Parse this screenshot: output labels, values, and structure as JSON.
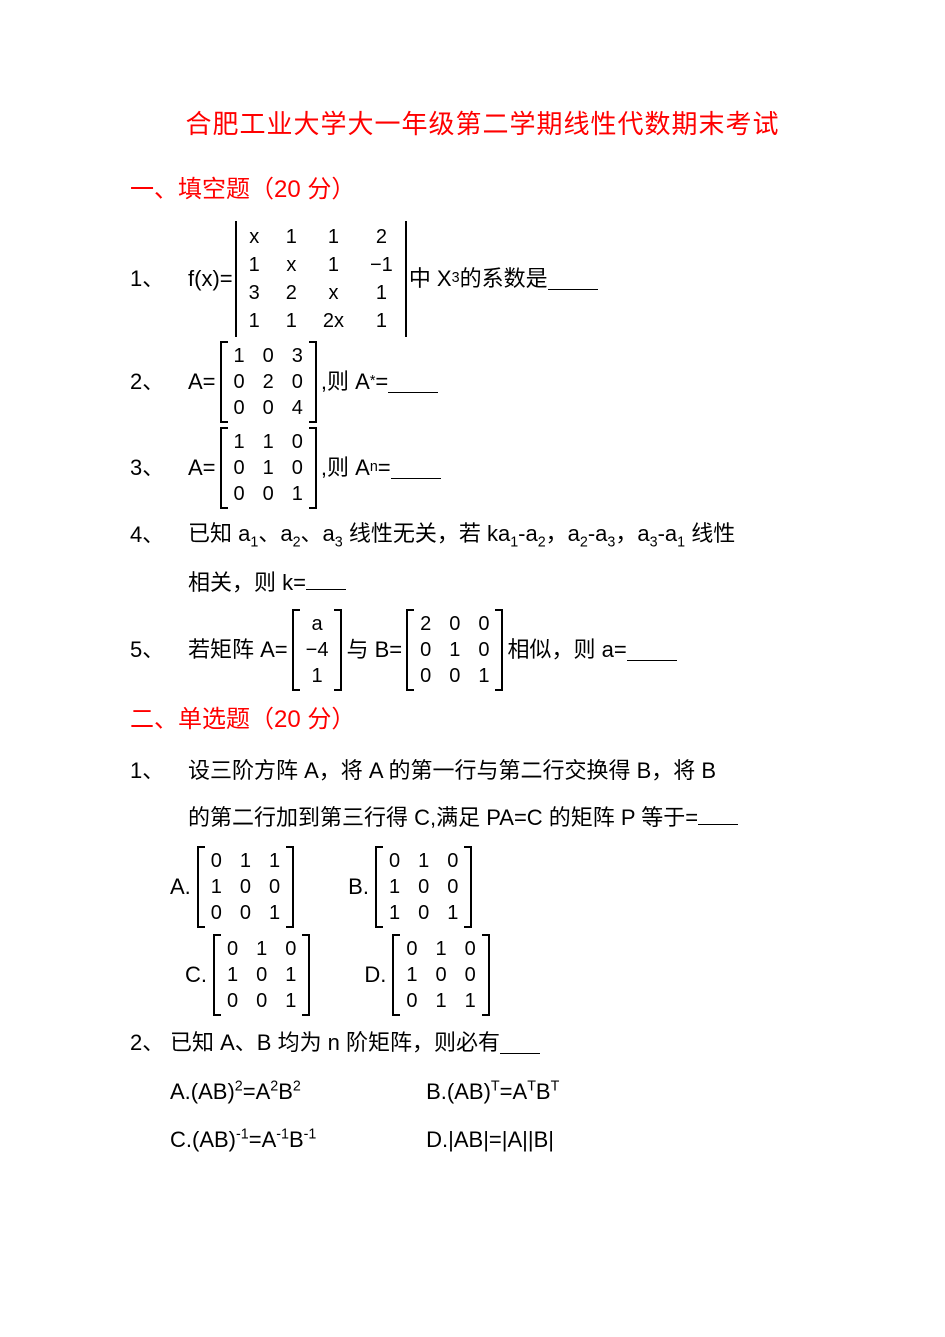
{
  "colors": {
    "accent": "#ff0000",
    "text": "#000000",
    "background": "#ffffff"
  },
  "typography": {
    "body_fontsize_pt": 16,
    "title_fontsize_pt": 19,
    "font_family": "Microsoft YaHei / SimSun"
  },
  "title": "合肥工业大学大一年级第二学期线性代数期末考试",
  "section1": {
    "heading": "一、填空题（20 分）",
    "q1": {
      "num": "1、",
      "prefix": "f(x)=",
      "matrix": {
        "type": "determinant",
        "rows": [
          [
            "x",
            "1",
            "1",
            "2"
          ],
          [
            "1",
            "x",
            "1",
            "−1"
          ],
          [
            "3",
            "2",
            "x",
            "1"
          ],
          [
            "1",
            "1",
            "2x",
            "1"
          ]
        ]
      },
      "suffix_before_sup": "中 X",
      "sup": "3",
      "suffix_after_sup": " 的系数是"
    },
    "q2": {
      "num": "2、",
      "prefix": "A=",
      "matrix": {
        "type": "bracket",
        "rows": [
          [
            "1",
            "0",
            "3"
          ],
          [
            "0",
            "2",
            "0"
          ],
          [
            "0",
            "0",
            "4"
          ]
        ]
      },
      "mid": ",则 A",
      "sup": "*",
      "after": "="
    },
    "q3": {
      "num": "3、",
      "prefix": "A=",
      "matrix": {
        "type": "bracket",
        "rows": [
          [
            "1",
            "1",
            "0"
          ],
          [
            "0",
            "1",
            "0"
          ],
          [
            "0",
            "0",
            "1"
          ]
        ]
      },
      "mid": ",则 A",
      "sup": "n",
      "after": "="
    },
    "q4": {
      "num": "4、",
      "line1_parts": [
        "已知 a",
        "1",
        "、a",
        "2",
        "、a",
        "3",
        " 线性无关，若 ka",
        "1",
        "-a",
        "2",
        "，a",
        "2",
        "-a",
        "3",
        "，a",
        "3",
        "-a",
        "1",
        " 线性"
      ],
      "line2": "相关，则 k="
    },
    "q5": {
      "num": "5、",
      "prefix": "若矩阵 A=",
      "matA": {
        "type": "bracket",
        "rows": [
          [
            "a"
          ],
          [
            "−4"
          ],
          [
            "1"
          ]
        ]
      },
      "mid1": "与 B=",
      "matB": {
        "type": "bracket",
        "rows": [
          [
            "2",
            "0",
            "0"
          ],
          [
            "0",
            "1",
            "0"
          ],
          [
            "0",
            "0",
            "1"
          ]
        ]
      },
      "mid2": "相似，则 a="
    }
  },
  "section2": {
    "heading": "二、单选题（20 分）",
    "q1": {
      "num": "1、",
      "line1": "设三阶方阵 A，将 A 的第一行与第二行交换得 B，将 B",
      "line2": "的第二行加到第三行得 C,满足 PA=C 的矩阵 P 等于=",
      "opts": {
        "A": {
          "rows": [
            [
              "0",
              "1",
              "1"
            ],
            [
              "1",
              "0",
              "0"
            ],
            [
              "0",
              "0",
              "1"
            ]
          ]
        },
        "B": {
          "rows": [
            [
              "0",
              "1",
              "0"
            ],
            [
              "1",
              "0",
              "0"
            ],
            [
              "1",
              "0",
              "1"
            ]
          ]
        },
        "C": {
          "rows": [
            [
              "0",
              "1",
              "0"
            ],
            [
              "1",
              "0",
              "1"
            ],
            [
              "0",
              "0",
              "1"
            ]
          ]
        },
        "D": {
          "rows": [
            [
              "0",
              "1",
              "0"
            ],
            [
              "1",
              "0",
              "0"
            ],
            [
              "0",
              "1",
              "1"
            ]
          ]
        }
      },
      "labels": {
        "A": "A.",
        "B": "B.",
        "C": "C.",
        "D": "D."
      }
    },
    "q2": {
      "num": "2、",
      "stem": "已知 A、B 均为 n 阶矩阵，则必有",
      "optA": {
        "label": "A.",
        "pre": "(AB)",
        "sup1": "2",
        "mid": "=A",
        "sup2": "2",
        "mid2": "B",
        "sup3": "2",
        "after": ""
      },
      "optB": {
        "label": "B.",
        "pre": "(AB)",
        "sup1": "T",
        "mid": "=A",
        "sup2": "T",
        "mid2": "B",
        "sup3": "T",
        "after": ""
      },
      "optC": {
        "label": "C.",
        "pre": "(AB)",
        "sup1": "-1",
        "mid": "=A",
        "sup2": "-1",
        "mid2": "B",
        "sup3": "-1",
        "after": ""
      },
      "optD": {
        "label": "D.",
        "text": "|AB|=|A||B|"
      }
    }
  }
}
